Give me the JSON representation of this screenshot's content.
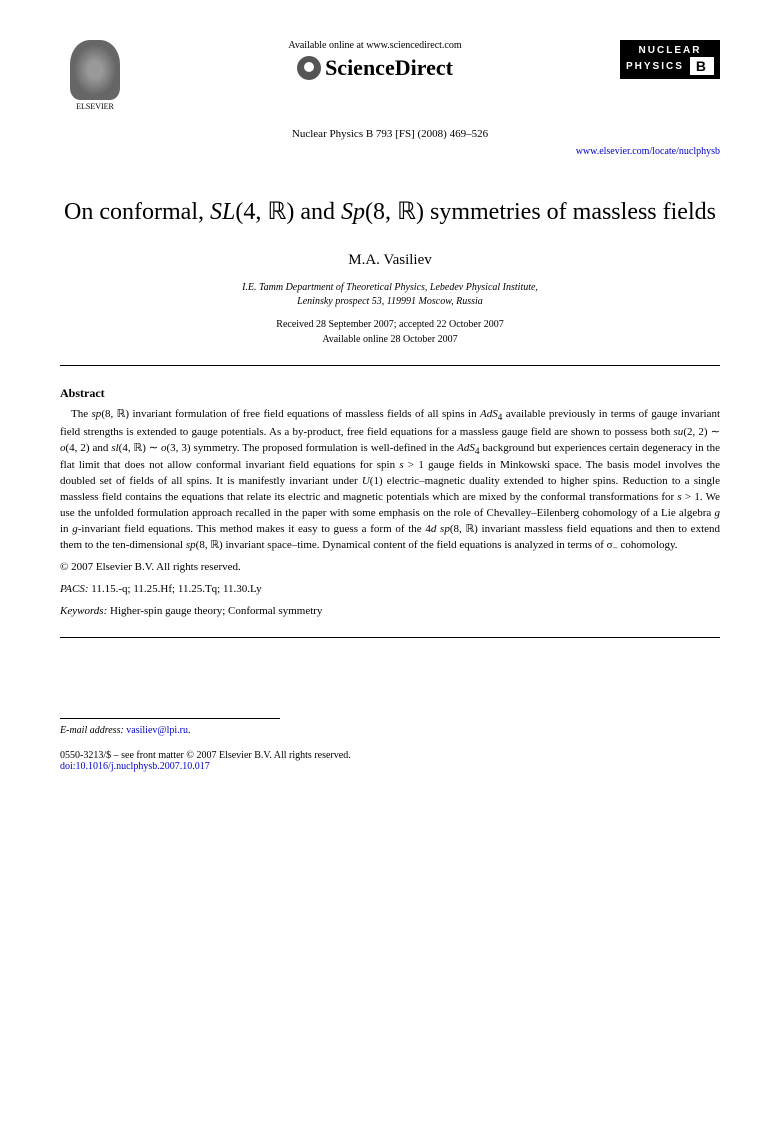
{
  "header": {
    "elsevier_label": "ELSEVIER",
    "sciencedirect_avail": "Available online at www.sciencedirect.com",
    "sciencedirect_name": "ScienceDirect",
    "nuclear_line1": "NUCLEAR",
    "nuclear_line2": "PHYSICS",
    "nuclear_b": "B",
    "journal_citation": "Nuclear Physics B 793 [FS] (2008) 469–526",
    "journal_url": "www.elsevier.com/locate/nuclphysb"
  },
  "title_html": "On conformal, <i>SL</i>(4, ℝ) and <i>Sp</i>(8, ℝ) symmetries of massless fields",
  "author": "M.A. Vasiliev",
  "affiliation": "I.E. Tamm Department of Theoretical Physics, Lebedev Physical Institute,\nLeninsky prospect 53, 119991 Moscow, Russia",
  "dates": {
    "received_accepted": "Received 28 September 2007; accepted 22 October 2007",
    "online": "Available online 28 October 2007"
  },
  "abstract": {
    "heading": "Abstract",
    "body_html": "The <i>sp</i>(8, ℝ) invariant formulation of free field equations of massless fields of all spins in <i>AdS</i><sub>4</sub> available previously in terms of gauge invariant field strengths is extended to gauge potentials. As a by-product, free field equations for a massless gauge field are shown to possess both <i>su</i>(2, 2) ∼ <i>o</i>(4, 2) and <i>sl</i>(4, ℝ) ∼ <i>o</i>(3, 3) symmetry. The proposed formulation is well-defined in the <i>AdS</i><sub>4</sub> background but experiences certain degeneracy in the flat limit that does not allow conformal invariant field equations for spin <i>s</i> > 1 gauge fields in Minkowski space. The basis model involves the doubled set of fields of all spins. It is manifestly invariant under <i>U</i>(1) electric–magnetic duality extended to higher spins. Reduction to a single massless field contains the equations that relate its electric and magnetic potentials which are mixed by the conformal transformations for <i>s</i> > 1. We use the unfolded formulation approach recalled in the paper with some emphasis on the role of Chevalley–Eilenberg cohomology of a Lie algebra <i>g</i> in <i>g</i>-invariant field equations. This method makes it easy to guess a form of the 4<i>d</i> <i>sp</i>(8, ℝ) invariant massless field equations and then to extend them to the ten-dimensional <i>sp</i>(8, ℝ) invariant space–time. Dynamical content of the field equations is analyzed in terms of σ<sub>−</sub> cohomology.",
    "copyright": "© 2007 Elsevier B.V. All rights reserved."
  },
  "pacs": {
    "label": "PACS:",
    "codes": "11.15.-q; 11.25.Hf; 11.25.Tq; 11.30.Ly"
  },
  "keywords": {
    "label": "Keywords:",
    "text": "Higher-spin gauge theory; Conformal symmetry"
  },
  "footer": {
    "email_label": "E-mail address:",
    "email": "vasiliev@lpi.ru",
    "front_matter": "0550-3213/$ – see front matter © 2007 Elsevier B.V. All rights reserved.",
    "doi": "doi:10.1016/j.nuclphysb.2007.10.017"
  },
  "colors": {
    "link": "#0000cc",
    "text": "#000000",
    "background": "#ffffff"
  }
}
